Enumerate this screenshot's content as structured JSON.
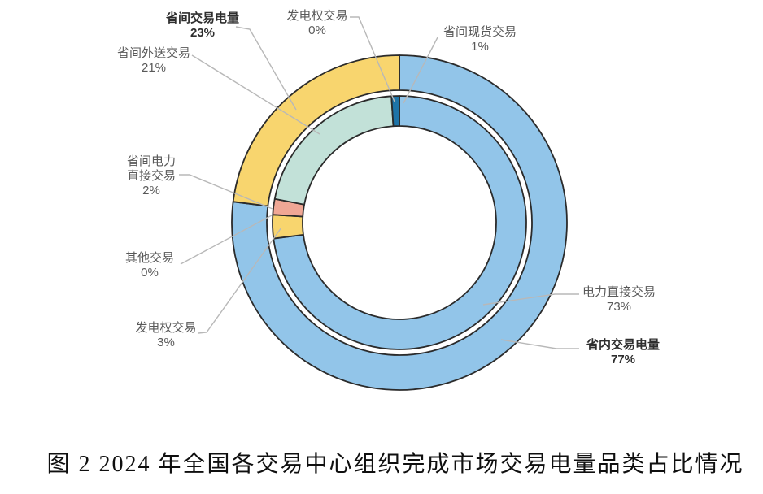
{
  "caption": "图 2 2024 年全国各交易中心组织完成市场交易电量品类占比情况",
  "colors": {
    "light_blue": "#92C5E9",
    "yellow": "#F8D56E",
    "teal": "#C2E1D8",
    "pink": "#F0A795",
    "dark_blue": "#1E74A8",
    "stroke": "#2b2b2b",
    "leader": "#b8b8b8",
    "label_text": "#595959",
    "label_text_bold": "#2e2e2e"
  },
  "chart_data": {
    "type": "pie",
    "subtype": "nested-donut",
    "title": "图 2 2024 年全国各交易中心组织完成市场交易电量品类占比情况",
    "unit": "%",
    "direction": "clockwise",
    "start_angle_deg": 0,
    "legend": "none",
    "rings": [
      {
        "name": "outer",
        "segments": [
          {
            "label": "省内交易电量",
            "value": 77,
            "color": "#92C5E9"
          },
          {
            "label": "省间交易电量",
            "value": 23,
            "color": "#F8D56E"
          }
        ]
      },
      {
        "name": "inner",
        "segments": [
          {
            "label": "电力直接交易",
            "value": 73,
            "color": "#92C5E9"
          },
          {
            "label": "发电权交易",
            "value": 3,
            "color": "#F8D56E"
          },
          {
            "label": "其他交易",
            "value": 0,
            "color": "#92C5E9"
          },
          {
            "label": "省间电力直接交易",
            "value": 2,
            "color": "#F0A795"
          },
          {
            "label": "省间外送交易",
            "value": 21,
            "color": "#C2E1D8"
          },
          {
            "label": "省间现货交易",
            "value": 1,
            "color": "#1E74A8"
          },
          {
            "label": "发电权交易",
            "value": 0,
            "color": "#F8D56E"
          }
        ]
      }
    ]
  },
  "labels": [
    {
      "lines": [
        "省间交易电量",
        "23%"
      ],
      "bold": true
    },
    {
      "lines": [
        "发电权交易",
        "0%"
      ],
      "bold": false
    },
    {
      "lines": [
        "省间现货交易",
        "1%"
      ],
      "bold": false
    },
    {
      "lines": [
        "省间外送交易",
        "21%"
      ],
      "bold": false
    },
    {
      "lines": [
        "省间电力",
        "直接交易",
        "2%"
      ],
      "bold": false
    },
    {
      "lines": [
        "其他交易",
        "0%"
      ],
      "bold": false
    },
    {
      "lines": [
        "发电权交易",
        "3%"
      ],
      "bold": false
    },
    {
      "lines": [
        "电力直接交易",
        "73%"
      ],
      "bold": false
    },
    {
      "lines": [
        "省内交易电量",
        "77%"
      ],
      "bold": true
    }
  ]
}
